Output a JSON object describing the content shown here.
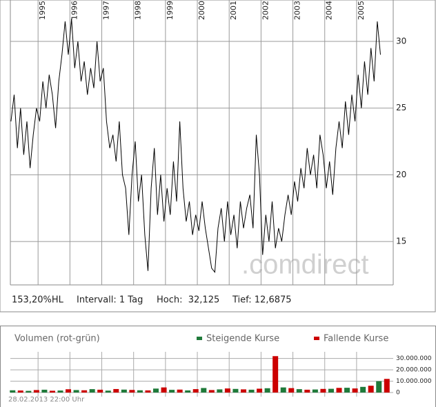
{
  "chart_data": [
    {
      "type": "line",
      "color": "#000000",
      "x": [
        1994.15,
        1994.25,
        1994.35,
        1994.45,
        1994.55,
        1994.65,
        1994.75,
        1994.85,
        1994.95,
        1995.05,
        1995.15,
        1995.25,
        1995.35,
        1995.45,
        1995.55,
        1995.65,
        1995.75,
        1995.85,
        1995.95,
        1996.05,
        1996.15,
        1996.25,
        1996.35,
        1996.45,
        1996.55,
        1996.65,
        1996.75,
        1996.85,
        1996.95,
        1997.05,
        1997.15,
        1997.25,
        1997.35,
        1997.45,
        1997.55,
        1997.65,
        1997.75,
        1997.85,
        1997.95,
        1998.05,
        1998.15,
        1998.25,
        1998.35,
        1998.45,
        1998.55,
        1998.65,
        1998.75,
        1998.85,
        1998.95,
        1999.05,
        1999.15,
        1999.25,
        1999.35,
        1999.45,
        1999.55,
        1999.65,
        1999.75,
        1999.85,
        1999.95,
        2000.05,
        2000.15,
        2000.25,
        2000.35,
        2000.45,
        2000.55,
        2000.65,
        2000.75,
        2000.85,
        2000.95,
        2001.05,
        2001.15,
        2001.25,
        2001.35,
        2001.45,
        2001.55,
        2001.65,
        2001.75,
        2001.85,
        2001.95,
        2002.05,
        2002.15,
        2002.25,
        2002.35,
        2002.45,
        2002.55,
        2002.65,
        2002.75,
        2002.85,
        2002.95,
        2003.05,
        2003.15,
        2003.25,
        2003.35,
        2003.45,
        2003.55,
        2003.65,
        2003.75,
        2003.85,
        2003.95,
        2004.05,
        2004.15,
        2004.25,
        2004.35,
        2004.45,
        2004.55,
        2004.65,
        2004.75,
        2004.85,
        2004.95,
        2005.05,
        2005.15,
        2005.25,
        2005.35,
        2005.45,
        2005.55,
        2005.65,
        2005.75
      ],
      "values": [
        24,
        26,
        22,
        25,
        21.5,
        24,
        20.5,
        23,
        25,
        24,
        27,
        25,
        27.5,
        26,
        23.5,
        27,
        29,
        31.5,
        29,
        31.7,
        28,
        30,
        27,
        28.5,
        26,
        28,
        26.5,
        30,
        27,
        28,
        24,
        22,
        23,
        21,
        24,
        20,
        19,
        15.5,
        20,
        22.5,
        18,
        20,
        15.5,
        12.8,
        19,
        22,
        17,
        20,
        16.5,
        19,
        17,
        21,
        18,
        24,
        19,
        16.5,
        18,
        15.5,
        17,
        15.8,
        18,
        16,
        14.5,
        13,
        12.7,
        16,
        17.5,
        15,
        18,
        15.5,
        17,
        14.5,
        18,
        16,
        17.5,
        18.5,
        16,
        23,
        20,
        14,
        17,
        15,
        18,
        14.5,
        16,
        15,
        17,
        18.5,
        17,
        19.5,
        18,
        20.5,
        19,
        22,
        20,
        21.5,
        19,
        23,
        21.5,
        19,
        21,
        18.5,
        22,
        24,
        22,
        25.5,
        23,
        26,
        24,
        27.5,
        25,
        28.5,
        26,
        29.5,
        27,
        31.5,
        29
      ],
      "xlim": [
        1994.13,
        2006.15
      ],
      "xticks": [
        1995,
        1996,
        1997,
        1998,
        1999,
        2000,
        2001,
        2002,
        2003,
        2004,
        2005
      ],
      "ylim": [
        11.75,
        33.1
      ],
      "yticks": [
        15,
        20,
        25,
        30
      ],
      "grid": true
    },
    {
      "type": "bar",
      "title": "Volumen (rot-grün)",
      "x": [
        1994.2,
        1994.45,
        1994.7,
        1994.95,
        1995.2,
        1995.45,
        1995.7,
        1995.95,
        1996.2,
        1996.45,
        1996.7,
        1996.95,
        1997.2,
        1997.45,
        1997.7,
        1997.95,
        1998.2,
        1998.45,
        1998.7,
        1998.95,
        1999.2,
        1999.45,
        1999.7,
        1999.95,
        2000.2,
        2000.45,
        2000.7,
        2000.95,
        2001.2,
        2001.45,
        2001.7,
        2001.95,
        2002.2,
        2002.45,
        2002.7,
        2002.95,
        2003.2,
        2003.45,
        2003.7,
        2003.95,
        2004.2,
        2004.45,
        2004.7,
        2004.95,
        2005.2,
        2005.45,
        2005.7,
        2005.95
      ],
      "series": [
        {
          "name": "Steigende Kurse",
          "color": "#1f7a3a",
          "values": [
            2000000,
            null,
            1500000,
            null,
            2500000,
            null,
            1800000,
            null,
            2200000,
            null,
            3000000,
            null,
            1700000,
            null,
            2600000,
            null,
            2000000,
            null,
            3500000,
            null,
            2400000,
            null,
            1900000,
            null,
            4000000,
            null,
            2800000,
            null,
            3200000,
            null,
            2500000,
            null,
            3800000,
            null,
            4500000,
            null,
            3000000,
            null,
            2700000,
            null,
            3300000,
            null,
            4200000,
            null,
            5000000,
            null,
            10000000,
            null
          ]
        },
        {
          "name": "Fallende Kurse",
          "color": "#cc0000",
          "values": [
            null,
            1800000,
            null,
            2200000,
            null,
            1600000,
            null,
            2900000,
            null,
            2000000,
            null,
            2500000,
            null,
            3100000,
            null,
            2300000,
            null,
            1900000,
            null,
            4500000,
            null,
            2600000,
            null,
            3000000,
            null,
            2200000,
            null,
            3600000,
            null,
            2800000,
            null,
            3400000,
            null,
            32000000,
            null,
            3900000,
            null,
            2500000,
            null,
            3200000,
            null,
            4100000,
            null,
            3600000,
            null,
            6000000,
            null,
            12000000
          ]
        }
      ],
      "xlim": [
        1994.13,
        2006.15
      ],
      "ylim": [
        -3600000,
        35800000
      ],
      "yticks": [
        0,
        {
          "value": 10000000,
          "label": "10.000.000"
        },
        {
          "value": 20000000,
          "label": "20.000.000"
        },
        {
          "value": 30000000,
          "label": "30.000.000"
        }
      ],
      "grid": true
    }
  ],
  "info": {
    "hl": "153,20%HL",
    "interval": "Intervall: 1 Tag",
    "high": "Hoch:  32,125",
    "low": "Tief: 12,6875",
    "watermark": ".comdirect",
    "timestamp": "28.02.2013 22:00 Uhr"
  }
}
